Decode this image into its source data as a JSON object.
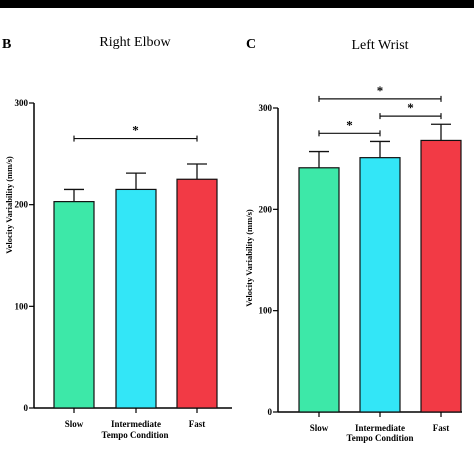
{
  "chart_data": [
    {
      "type": "bar",
      "panel": "B",
      "title": "Right Elbow",
      "xlabel": "Tempo Condition",
      "ylabel": "Velocity Variability (mm/s)",
      "categories": [
        "Slow",
        "Intermediate",
        "Fast"
      ],
      "values": [
        203,
        215,
        225
      ],
      "errors": [
        12,
        16,
        15
      ],
      "colors": [
        "#3de8a8",
        "#33e6f7",
        "#f23a45"
      ],
      "ylim": [
        0,
        300
      ],
      "yticks": [
        0,
        100,
        200,
        300
      ],
      "significance": [
        {
          "from": 0,
          "to": 2,
          "y": 265,
          "label": "*"
        }
      ]
    },
    {
      "type": "bar",
      "panel": "C",
      "title": "Left Wrist",
      "xlabel": "Tempo Condition",
      "ylabel": "Velocity Variability (mm/s)",
      "categories": [
        "Slow",
        "Intermediate",
        "Fast"
      ],
      "values": [
        241,
        251,
        268
      ],
      "errors": [
        16,
        16,
        16
      ],
      "colors": [
        "#3de8a8",
        "#33e6f7",
        "#f23a45"
      ],
      "ylim": [
        0,
        300
      ],
      "yticks": [
        0,
        100,
        200,
        300
      ],
      "significance": [
        {
          "from": 0,
          "to": 1,
          "y": 275,
          "label": "*"
        },
        {
          "from": 1,
          "to": 2,
          "y": 292,
          "label": "*"
        },
        {
          "from": 0,
          "to": 2,
          "y": 309,
          "label": "*"
        }
      ]
    }
  ]
}
